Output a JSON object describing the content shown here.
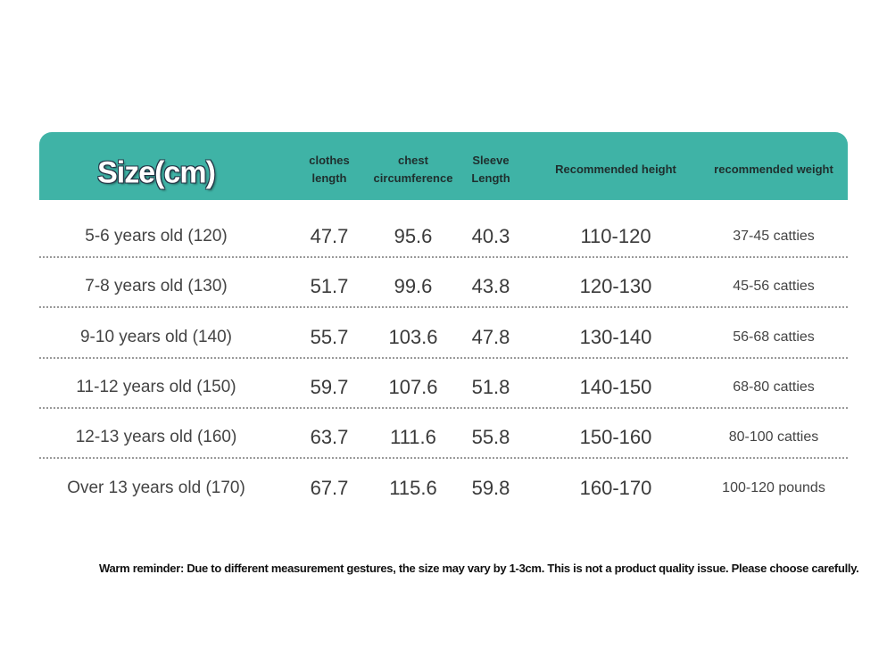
{
  "table": {
    "headers": [
      "Size(cm)",
      "clothes length",
      "chest circumference",
      "Sleeve Length",
      "Recommended height",
      "recommended weight"
    ],
    "rows": [
      [
        "5-6 years old (120)",
        "47.7",
        "95.6",
        "40.3",
        "110-120",
        "37-45 catties"
      ],
      [
        "7-8 years old (130)",
        "51.7",
        "99.6",
        "43.8",
        "120-130",
        "45-56 catties"
      ],
      [
        "9-10 years old (140)",
        "55.7",
        "103.6",
        "47.8",
        "130-140",
        "56-68 catties"
      ],
      [
        "11-12 years old (150)",
        "59.7",
        "107.6",
        "51.8",
        "140-150",
        "68-80 catties"
      ],
      [
        "12-13 years old (160)",
        "63.7",
        "111.6",
        "55.8",
        "150-160",
        "80-100 catties"
      ],
      [
        "Over 13 years old (170)",
        "67.7",
        "115.6",
        "59.8",
        "160-170",
        "100-120 pounds"
      ]
    ]
  },
  "note": "Warm reminder: Due to different measurement gestures, the size may vary by 1-3cm. This is not a product quality issue. Please choose carefully."
}
